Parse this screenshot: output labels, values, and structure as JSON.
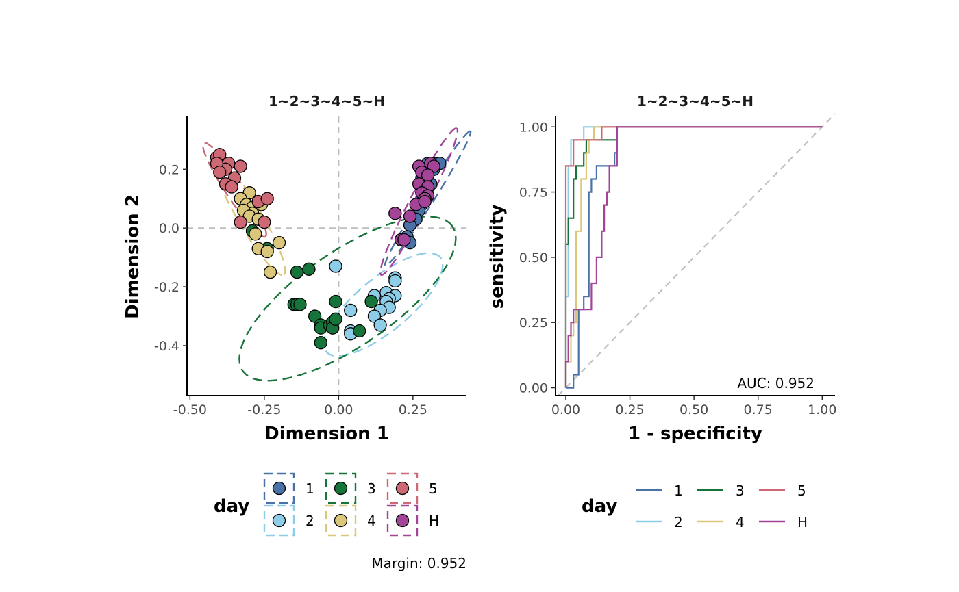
{
  "figure": {
    "margin_note": "Margin: 0.952"
  },
  "chart_data": [
    {
      "type": "scatter",
      "title": "1~2~3~4~5~H",
      "xlabel": "Dimension 1",
      "ylabel": "Dimension 2",
      "xlim": [
        -0.51,
        0.43
      ],
      "ylim": [
        -0.57,
        0.38
      ],
      "xticks": [
        -0.5,
        -0.25,
        0.0,
        0.25
      ],
      "xtick_labels": [
        "-0.50",
        "-0.25",
        "0.00",
        "0.25"
      ],
      "yticks": [
        0.2,
        0.0,
        -0.2,
        -0.4
      ],
      "ytick_labels": [
        "0.2",
        "0.0",
        "-0.2",
        "-0.4"
      ],
      "reference_lines": {
        "x": 0,
        "y": 0,
        "style": "dashed",
        "color": "#bdbdbd"
      },
      "legend": {
        "title": "day",
        "placement": "bottom"
      },
      "series": [
        {
          "name": "1",
          "color": "#4a72a6",
          "ellipse": {
            "center": [
              0.3,
              0.1
            ],
            "a": 0.27,
            "b": 0.02,
            "angle_deg": 58
          },
          "points": [
            [
              0.31,
              0.22
            ],
            [
              0.33,
              0.22
            ],
            [
              0.29,
              0.21
            ],
            [
              0.3,
              0.19
            ],
            [
              0.32,
              0.2
            ],
            [
              0.28,
              0.17
            ],
            [
              0.29,
              0.15
            ],
            [
              0.3,
              0.13
            ],
            [
              0.28,
              0.12
            ],
            [
              0.28,
              0.1
            ],
            [
              0.28,
              0.08
            ],
            [
              0.27,
              0.06
            ],
            [
              0.26,
              0.03
            ],
            [
              0.24,
              0.01
            ],
            [
              0.23,
              -0.03
            ],
            [
              0.24,
              -0.05
            ],
            [
              0.29,
              0.17
            ],
            [
              0.31,
              0.15
            ],
            [
              0.34,
              0.22
            ],
            [
              0.3,
              0.22
            ]
          ]
        },
        {
          "name": "2",
          "color": "#8ecde8",
          "ellipse": {
            "center": [
              0.15,
              -0.26
            ],
            "a": 0.25,
            "b": 0.09,
            "angle_deg": 40
          },
          "points": [
            [
              -0.01,
              -0.13
            ],
            [
              0.19,
              -0.17
            ],
            [
              0.19,
              -0.18
            ],
            [
              0.16,
              -0.22
            ],
            [
              0.19,
              -0.23
            ],
            [
              0.17,
              -0.24
            ],
            [
              0.16,
              -0.25
            ],
            [
              0.17,
              -0.27
            ],
            [
              0.12,
              -0.23
            ],
            [
              0.14,
              -0.28
            ],
            [
              0.12,
              -0.3
            ],
            [
              0.14,
              -0.33
            ],
            [
              0.04,
              -0.28
            ],
            [
              0.04,
              -0.35
            ],
            [
              0.04,
              -0.36
            ]
          ]
        },
        {
          "name": "3",
          "color": "#16743a",
          "ellipse": {
            "center": [
              0.03,
              -0.24
            ],
            "a": 0.43,
            "b": 0.16,
            "angle_deg": 35
          },
          "points": [
            [
              -0.29,
              -0.01
            ],
            [
              -0.24,
              -0.07
            ],
            [
              -0.14,
              -0.15
            ],
            [
              -0.1,
              -0.14
            ],
            [
              -0.15,
              -0.26
            ],
            [
              -0.14,
              -0.26
            ],
            [
              -0.13,
              -0.26
            ],
            [
              -0.08,
              -0.3
            ],
            [
              -0.06,
              -0.33
            ],
            [
              -0.06,
              -0.34
            ],
            [
              -0.03,
              -0.33
            ],
            [
              -0.02,
              -0.32
            ],
            [
              -0.02,
              -0.34
            ],
            [
              -0.01,
              -0.31
            ],
            [
              -0.01,
              -0.25
            ],
            [
              0.11,
              -0.25
            ],
            [
              0.07,
              -0.35
            ],
            [
              -0.06,
              -0.39
            ]
          ]
        },
        {
          "name": "4",
          "color": "#dac77b",
          "ellipse": {
            "center": [
              -0.3,
              0.04
            ],
            "a": 0.23,
            "b": 0.04,
            "angle_deg": -60
          },
          "points": [
            [
              -0.3,
              0.12
            ],
            [
              -0.33,
              0.1
            ],
            [
              -0.31,
              0.08
            ],
            [
              -0.29,
              0.07
            ],
            [
              -0.26,
              0.08
            ],
            [
              -0.29,
              0.05
            ],
            [
              -0.32,
              0.06
            ],
            [
              -0.3,
              0.04
            ],
            [
              -0.27,
              0.03
            ],
            [
              -0.28,
              -0.02
            ],
            [
              -0.27,
              -0.07
            ],
            [
              -0.24,
              -0.08
            ],
            [
              -0.2,
              -0.05
            ],
            [
              -0.23,
              -0.15
            ]
          ]
        },
        {
          "name": "5",
          "color": "#cd6874",
          "ellipse": {
            "center": [
              -0.35,
              0.13
            ],
            "a": 0.19,
            "b": 0.03,
            "angle_deg": -57
          },
          "points": [
            [
              -0.41,
              0.24
            ],
            [
              -0.4,
              0.25
            ],
            [
              -0.37,
              0.22
            ],
            [
              -0.38,
              0.2
            ],
            [
              -0.41,
              0.22
            ],
            [
              -0.4,
              0.19
            ],
            [
              -0.33,
              0.21
            ],
            [
              -0.35,
              0.17
            ],
            [
              -0.38,
              0.15
            ],
            [
              -0.36,
              0.14
            ],
            [
              -0.27,
              0.09
            ],
            [
              -0.24,
              0.1
            ],
            [
              -0.25,
              0.02
            ],
            [
              -0.33,
              0.02
            ]
          ]
        },
        {
          "name": "H",
          "color": "#a34499",
          "ellipse": {
            "center": [
              0.27,
              0.09
            ],
            "a": 0.28,
            "b": 0.03,
            "angle_deg": 63
          },
          "points": [
            [
              0.27,
              0.21
            ],
            [
              0.31,
              0.22
            ],
            [
              0.32,
              0.21
            ],
            [
              0.28,
              0.19
            ],
            [
              0.3,
              0.18
            ],
            [
              0.27,
              0.15
            ],
            [
              0.3,
              0.14
            ],
            [
              0.28,
              0.12
            ],
            [
              0.3,
              0.11
            ],
            [
              0.29,
              0.1
            ],
            [
              0.26,
              0.08
            ],
            [
              0.29,
              0.09
            ],
            [
              0.24,
              0.04
            ],
            [
              0.19,
              0.05
            ],
            [
              0.21,
              -0.04
            ],
            [
              0.22,
              -0.04
            ]
          ]
        }
      ]
    },
    {
      "type": "line",
      "title": "1~2~3~4~5~H",
      "xlabel": "1 - specificity",
      "ylabel": "sensitivity",
      "xlim": [
        -0.04,
        1.05
      ],
      "ylim": [
        -0.03,
        1.04
      ],
      "xticks": [
        0.0,
        0.25,
        0.5,
        0.75,
        1.0
      ],
      "xtick_labels": [
        "0.00",
        "0.25",
        "0.50",
        "0.75",
        "1.00"
      ],
      "yticks": [
        0.0,
        0.25,
        0.5,
        0.75,
        1.0
      ],
      "ytick_labels": [
        "0.00",
        "0.25",
        "0.50",
        "0.75",
        "1.00"
      ],
      "reference_line": {
        "from": [
          0,
          0
        ],
        "to": [
          1,
          1
        ],
        "style": "dashed",
        "color": "#bdbdbd"
      },
      "annotation": "AUC: 0.952",
      "legend": {
        "title": "day",
        "placement": "bottom"
      },
      "series": [
        {
          "name": "1",
          "color": "#4a72a6",
          "points": [
            [
              0,
              0
            ],
            [
              0.03,
              0
            ],
            [
              0.03,
              0.05
            ],
            [
              0.05,
              0.05
            ],
            [
              0.05,
              0.3
            ],
            [
              0.07,
              0.3
            ],
            [
              0.07,
              0.35
            ],
            [
              0.09,
              0.35
            ],
            [
              0.09,
              0.75
            ],
            [
              0.1,
              0.75
            ],
            [
              0.1,
              0.8
            ],
            [
              0.12,
              0.8
            ],
            [
              0.12,
              0.85
            ],
            [
              0.19,
              0.85
            ],
            [
              0.19,
              0.9
            ],
            [
              0.2,
              0.9
            ],
            [
              0.2,
              1
            ],
            [
              1,
              1
            ]
          ]
        },
        {
          "name": "2",
          "color": "#8ecde8",
          "points": [
            [
              0,
              0
            ],
            [
              0,
              0.35
            ],
            [
              0.01,
              0.35
            ],
            [
              0.01,
              0.85
            ],
            [
              0.02,
              0.85
            ],
            [
              0.02,
              0.95
            ],
            [
              0.07,
              0.95
            ],
            [
              0.07,
              1
            ],
            [
              1,
              1
            ]
          ]
        },
        {
          "name": "3",
          "color": "#16743a",
          "points": [
            [
              0,
              0
            ],
            [
              0,
              0.55
            ],
            [
              0.01,
              0.55
            ],
            [
              0.01,
              0.65
            ],
            [
              0.03,
              0.65
            ],
            [
              0.03,
              0.8
            ],
            [
              0.04,
              0.8
            ],
            [
              0.04,
              0.85
            ],
            [
              0.07,
              0.85
            ],
            [
              0.07,
              0.9
            ],
            [
              0.08,
              0.9
            ],
            [
              0.08,
              0.95
            ],
            [
              0.2,
              0.95
            ],
            [
              0.2,
              1
            ],
            [
              1,
              1
            ]
          ]
        },
        {
          "name": "4",
          "color": "#dac77b",
          "points": [
            [
              0,
              0
            ],
            [
              0,
              0.1
            ],
            [
              0.02,
              0.1
            ],
            [
              0.02,
              0.2
            ],
            [
              0.03,
              0.2
            ],
            [
              0.03,
              0.25
            ],
            [
              0.04,
              0.25
            ],
            [
              0.04,
              0.6
            ],
            [
              0.06,
              0.6
            ],
            [
              0.06,
              0.8
            ],
            [
              0.08,
              0.8
            ],
            [
              0.08,
              0.9
            ],
            [
              0.09,
              0.9
            ],
            [
              0.09,
              0.95
            ],
            [
              0.11,
              0.95
            ],
            [
              0.11,
              1
            ],
            [
              1,
              1
            ]
          ]
        },
        {
          "name": "5",
          "color": "#cd6874",
          "points": [
            [
              0,
              0
            ],
            [
              0,
              0.85
            ],
            [
              0.03,
              0.85
            ],
            [
              0.03,
              0.95
            ],
            [
              0.14,
              0.95
            ],
            [
              0.14,
              1
            ],
            [
              1,
              1
            ]
          ]
        },
        {
          "name": "H",
          "color": "#a34499",
          "points": [
            [
              0,
              0
            ],
            [
              0,
              0.1
            ],
            [
              0.01,
              0.1
            ],
            [
              0.01,
              0.2
            ],
            [
              0.02,
              0.2
            ],
            [
              0.02,
              0.25
            ],
            [
              0.03,
              0.25
            ],
            [
              0.03,
              0.3
            ],
            [
              0.05,
              0.3
            ],
            [
              0.05,
              0.3
            ],
            [
              0.1,
              0.3
            ],
            [
              0.1,
              0.4
            ],
            [
              0.12,
              0.4
            ],
            [
              0.12,
              0.5
            ],
            [
              0.14,
              0.5
            ],
            [
              0.14,
              0.6
            ],
            [
              0.15,
              0.6
            ],
            [
              0.15,
              0.7
            ],
            [
              0.16,
              0.7
            ],
            [
              0.16,
              0.75
            ],
            [
              0.17,
              0.75
            ],
            [
              0.17,
              0.85
            ],
            [
              0.2,
              0.85
            ],
            [
              0.2,
              1
            ],
            [
              1,
              1
            ]
          ]
        }
      ]
    }
  ]
}
